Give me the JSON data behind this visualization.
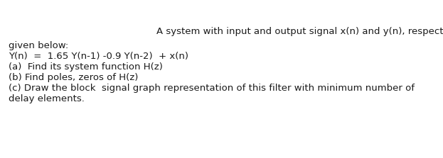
{
  "line1": "A system with input and output signal x(n) and y(n), respectively, is",
  "line2": "given below:",
  "line3": "Y(n)  =  1.65 Y(n-1) -0.9 Y(n-2)  + x(n)",
  "line4": "(a)  Find its system function H(z)",
  "line5": "(b) Find poles, zeros of H(z)",
  "line6": "(c) Draw the block  signal graph representation of this filter with minimum number of",
  "line7": "delay elements.",
  "text_color": "#1a1a1a",
  "background_color": "#ffffff",
  "font_size": 9.5,
  "font_family": "DejaVu Sans"
}
